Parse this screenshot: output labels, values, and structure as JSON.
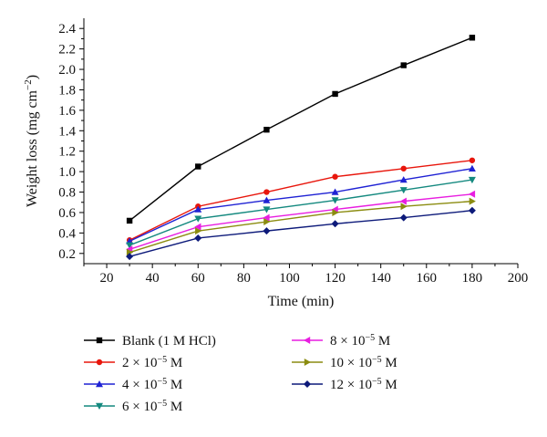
{
  "chart_data": {
    "type": "line",
    "xlabel": "Time (min)",
    "ylabel": "Weight loss (mg cm",
    "ylabel_sup": "−2",
    "ylabel_close": ")",
    "xlim": [
      10,
      200
    ],
    "ylim": [
      0.1,
      2.5
    ],
    "x_ticks": [
      20,
      40,
      60,
      80,
      100,
      120,
      140,
      160,
      180,
      200
    ],
    "y_ticks": [
      0.2,
      0.4,
      0.6,
      0.8,
      1.0,
      1.2,
      1.4,
      1.6,
      1.8,
      2.0,
      2.2,
      2.4
    ],
    "x_tick_labels": [
      "20",
      "40",
      "60",
      "80",
      "100",
      "120",
      "140",
      "160",
      "180",
      "200"
    ],
    "y_tick_labels": [
      "0.2",
      "0.4",
      "0.6",
      "0.8",
      "1.0",
      "1.2",
      "1.4",
      "1.6",
      "1.8",
      "2.0",
      "2.2",
      "2.4"
    ],
    "x": [
      30,
      60,
      90,
      120,
      150,
      180
    ],
    "grid": false,
    "legend_placement": "bottom",
    "series": [
      {
        "name": "Blank (1 M HCl)",
        "label_main": "Blank (1 M HCl)",
        "color": "#000000",
        "marker": "square",
        "values": [
          0.52,
          1.05,
          1.41,
          1.76,
          2.04,
          2.31
        ]
      },
      {
        "name": "2 × 10−5 M",
        "label_main": "2 × 10",
        "label_exp": "−5",
        "label_unit": " M",
        "color": "#e8160c",
        "marker": "circle",
        "values": [
          0.33,
          0.66,
          0.8,
          0.95,
          1.03,
          1.11
        ]
      },
      {
        "name": "4 × 10−5 M",
        "label_main": "4 × 10",
        "label_exp": "−5",
        "label_unit": " M",
        "color": "#1f22d4",
        "marker": "triangle-up",
        "values": [
          0.32,
          0.63,
          0.72,
          0.8,
          0.92,
          1.03
        ]
      },
      {
        "name": "6 × 10−5 M",
        "label_main": "6 × 10",
        "label_exp": "−5",
        "label_unit": " M",
        "color": "#14897f",
        "marker": "triangle-down",
        "values": [
          0.28,
          0.54,
          0.63,
          0.72,
          0.82,
          0.92
        ]
      },
      {
        "name": "8 × 10−5 M",
        "label_main": "8 × 10",
        "label_exp": "−5",
        "label_unit": " M",
        "color": "#e81ee0",
        "marker": "triangle-left",
        "values": [
          0.24,
          0.46,
          0.55,
          0.63,
          0.71,
          0.78
        ]
      },
      {
        "name": "10 × 10−5 M",
        "label_main": "10 × 10",
        "label_exp": "−5",
        "label_unit": " M",
        "color": "#8b8c10",
        "marker": "triangle-right",
        "values": [
          0.21,
          0.42,
          0.51,
          0.6,
          0.66,
          0.71
        ]
      },
      {
        "name": "12 × 10−5 M",
        "label_main": "12 × 10",
        "label_exp": "−5",
        "label_unit": " M",
        "color": "#0d1a7a",
        "marker": "diamond",
        "values": [
          0.17,
          0.35,
          0.42,
          0.49,
          0.55,
          0.62
        ]
      }
    ]
  }
}
